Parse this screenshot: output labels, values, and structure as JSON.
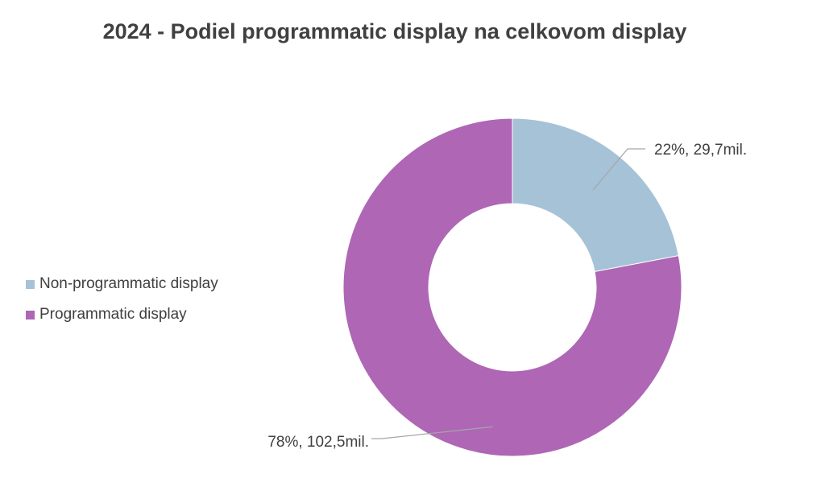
{
  "chart_data": {
    "type": "pie",
    "variant": "donut",
    "title": "2024 - Podiel programmatic display na celkovom display",
    "slices": [
      {
        "name": "Non-programmatic display",
        "percent": 22,
        "value": 29.7,
        "label": "22%, 29,7mil.",
        "color": "#a6c2d6"
      },
      {
        "name": "Programmatic display",
        "percent": 78,
        "value": 102.5,
        "label": "78%, 102,5mil.",
        "color": "#ae66b5"
      }
    ],
    "legend_position": "left",
    "leader_line_color": "#a6a6a6"
  }
}
